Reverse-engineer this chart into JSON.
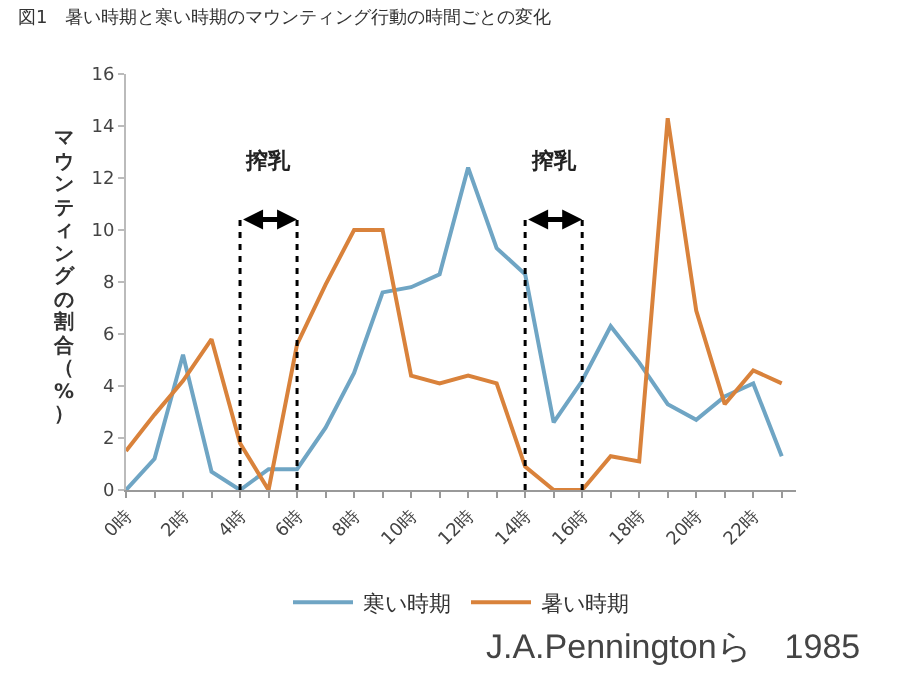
{
  "chart_data": {
    "type": "line",
    "title": "図1　暑い時期と寒い時期のマウンティング行動の時間ごとの変化",
    "ylabel": "マウンティングの割合（%）",
    "categories": [
      "0時",
      null,
      "2時",
      null,
      "4時",
      null,
      "6時",
      null,
      "8時",
      null,
      "10時",
      null,
      "12時",
      null,
      "14時",
      null,
      "16時",
      null,
      "18時",
      null,
      "20時",
      null,
      "22時",
      null
    ],
    "series": [
      {
        "name": "寒い時期",
        "color": "#6fa5c4",
        "values": [
          0,
          1.2,
          5.2,
          0.7,
          0,
          0.8,
          0.8,
          2.4,
          4.5,
          7.6,
          7.8,
          8.3,
          12.4,
          9.3,
          8.3,
          2.6,
          4.2,
          6.3,
          4.9,
          3.3,
          2.7,
          3.6,
          4.1,
          1.3
        ]
      },
      {
        "name": "暑い時期",
        "color": "#d9823b",
        "values": [
          1.5,
          2.9,
          4.2,
          5.8,
          1.8,
          0,
          5.6,
          7.9,
          10,
          10,
          4.4,
          4.1,
          4.4,
          4.1,
          0.9,
          0,
          0,
          1.3,
          1.1,
          14.3,
          6.9,
          3.3,
          4.6,
          4.1
        ]
      }
    ],
    "ylim": [
      0,
      16
    ],
    "yticks": [
      0,
      2,
      4,
      6,
      8,
      10,
      12,
      14,
      16
    ],
    "grid": false,
    "legend": "bottom",
    "marker": "none",
    "line_style": "solid",
    "ref_lines": [
      {
        "axis": "x",
        "value": "4時",
        "label": "搾乳",
        "color": "#000000",
        "line_style": "dotted"
      },
      {
        "axis": "x",
        "value": "6時",
        "color": "#000000",
        "line_style": "dotted"
      },
      {
        "axis": "x",
        "value": "14時",
        "label": "搾乳",
        "color": "#000000",
        "line_style": "dotted"
      },
      {
        "axis": "x",
        "value": "16時",
        "color": "#000000",
        "line_style": "dotted"
      }
    ],
    "annotations": [
      "J.A.Penningtonら　1985"
    ]
  }
}
